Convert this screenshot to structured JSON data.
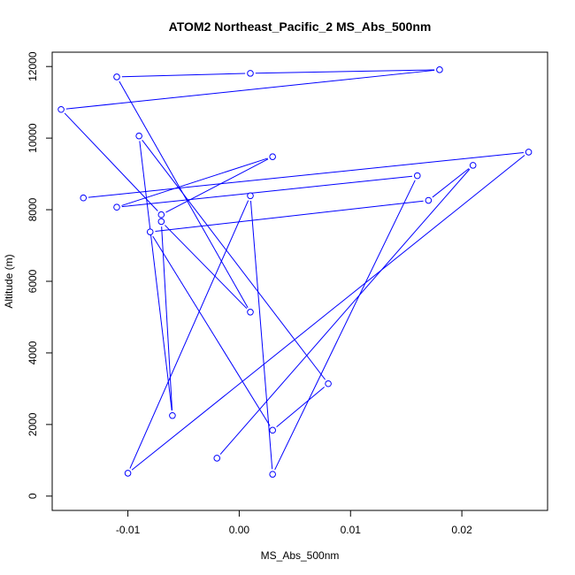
{
  "chart_data": {
    "type": "line",
    "title": "ATOM2 Northeast_Pacific_2 MS_Abs_500nm",
    "xlabel": "MS_Abs_500nm",
    "ylabel": "Altitude (m)",
    "xlim": [
      -0.0168,
      0.0277
    ],
    "ylim": [
      -400,
      12400
    ],
    "xticks": [
      -0.01,
      0.0,
      0.01,
      0.02
    ],
    "xtick_labels": [
      "-0.01",
      "0.00",
      "0.01",
      "0.02"
    ],
    "yticks": [
      0,
      2000,
      4000,
      6000,
      8000,
      10000,
      12000
    ],
    "ytick_labels": [
      "0",
      "2000",
      "4000",
      "6000",
      "8000",
      "10000",
      "12000"
    ],
    "grid": false,
    "marker": "open-circle",
    "line_color": "#0000ff",
    "series": [
      {
        "points": [
          {
            "x": -0.002,
            "y": 1060
          },
          {
            "x": 0.021,
            "y": 9240
          },
          {
            "x": 0.017,
            "y": 8260
          },
          {
            "x": -0.008,
            "y": 7380
          },
          {
            "x": 0.003,
            "y": 1840
          },
          {
            "x": 0.008,
            "y": 3140
          },
          {
            "x": -0.009,
            "y": 10060
          },
          {
            "x": -0.006,
            "y": 2250
          },
          {
            "x": -0.007,
            "y": 7670
          },
          {
            "x": 0.001,
            "y": 5140
          },
          {
            "x": -0.011,
            "y": 11710
          },
          {
            "x": 0.001,
            "y": 11810
          },
          {
            "x": 0.018,
            "y": 11910
          },
          {
            "x": -0.016,
            "y": 10800
          },
          {
            "x": -0.007,
            "y": 7860
          },
          {
            "x": 0.003,
            "y": 9480
          },
          {
            "x": -0.011,
            "y": 8070
          },
          {
            "x": 0.016,
            "y": 8950
          },
          {
            "x": 0.003,
            "y": 610
          },
          {
            "x": 0.001,
            "y": 8390
          },
          {
            "x": -0.01,
            "y": 640
          },
          {
            "x": 0.026,
            "y": 9610
          },
          {
            "x": -0.014,
            "y": 8330
          }
        ]
      }
    ]
  }
}
